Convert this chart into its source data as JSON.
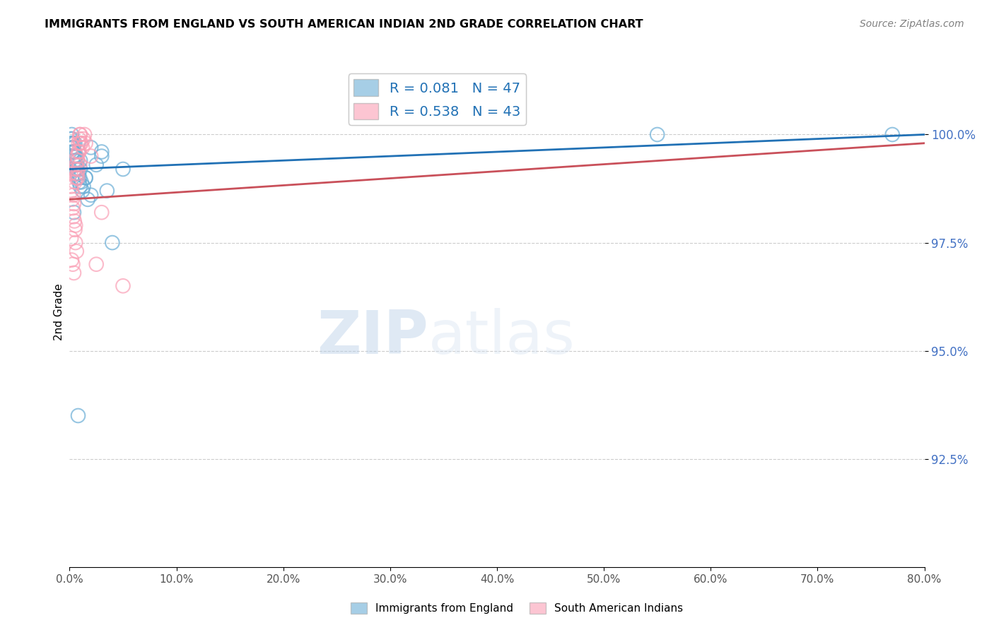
{
  "title": "IMMIGRANTS FROM ENGLAND VS SOUTH AMERICAN INDIAN 2ND GRADE CORRELATION CHART",
  "source": "Source: ZipAtlas.com",
  "ylabel": "2nd Grade",
  "legend_label1": "Immigrants from England",
  "legend_label2": "South American Indians",
  "R1": 0.081,
  "N1": 47,
  "R2": 0.538,
  "N2": 43,
  "color1": "#6baed6",
  "color2": "#fa9fb5",
  "trendline1_color": "#2171b5",
  "trendline2_color": "#c9505a",
  "xlim": [
    0.0,
    80.0
  ],
  "ylim": [
    90.0,
    101.8
  ],
  "yticks": [
    92.5,
    95.0,
    97.5,
    100.0
  ],
  "xticks": [
    0.0,
    10.0,
    20.0,
    30.0,
    40.0,
    50.0,
    60.0,
    70.0,
    80.0
  ],
  "scatter1_x": [
    0.1,
    0.15,
    0.2,
    0.2,
    0.25,
    0.3,
    0.3,
    0.35,
    0.4,
    0.4,
    0.45,
    0.5,
    0.5,
    0.55,
    0.6,
    0.6,
    0.65,
    0.7,
    0.7,
    0.75,
    0.8,
    0.85,
    0.9,
    0.95,
    1.0,
    1.0,
    1.1,
    1.2,
    1.3,
    1.5,
    1.7,
    2.0,
    2.5,
    3.0,
    3.5,
    4.0,
    5.0,
    0.3,
    0.5,
    1.0,
    1.5,
    2.0,
    3.0,
    55.0,
    77.0,
    0.4,
    0.8
  ],
  "scatter1_y": [
    99.9,
    99.8,
    99.7,
    100.0,
    99.9,
    99.8,
    99.6,
    99.7,
    99.8,
    99.5,
    99.6,
    99.5,
    99.4,
    99.3,
    99.5,
    99.2,
    99.3,
    99.4,
    99.1,
    99.2,
    99.0,
    99.1,
    98.9,
    99.0,
    99.2,
    98.8,
    98.9,
    98.7,
    98.8,
    99.0,
    98.5,
    98.6,
    99.3,
    99.5,
    98.7,
    97.5,
    99.2,
    99.6,
    99.8,
    99.4,
    99.0,
    99.7,
    99.6,
    100.0,
    100.0,
    98.2,
    93.5
  ],
  "scatter2_x": [
    0.1,
    0.15,
    0.2,
    0.25,
    0.3,
    0.35,
    0.4,
    0.45,
    0.5,
    0.5,
    0.55,
    0.6,
    0.65,
    0.7,
    0.75,
    0.8,
    0.85,
    0.9,
    0.95,
    1.0,
    1.1,
    1.2,
    1.3,
    1.4,
    1.5,
    0.2,
    0.3,
    0.4,
    0.5,
    0.6,
    0.7,
    0.8,
    0.9,
    1.0,
    2.0,
    3.0,
    0.15,
    0.35,
    0.55,
    0.75,
    0.95,
    2.5,
    5.0
  ],
  "scatter2_y": [
    99.1,
    98.8,
    98.7,
    98.5,
    98.3,
    98.1,
    98.4,
    98.0,
    99.2,
    97.8,
    97.5,
    99.0,
    97.3,
    99.1,
    99.4,
    99.6,
    99.8,
    99.9,
    100.0,
    100.0,
    99.8,
    99.7,
    99.9,
    100.0,
    99.8,
    97.1,
    97.0,
    96.8,
    98.9,
    99.3,
    99.5,
    99.2,
    99.6,
    99.8,
    99.5,
    98.2,
    97.6,
    98.6,
    97.9,
    99.0,
    99.3,
    97.0,
    96.5
  ],
  "trendline1_x0": 0.0,
  "trendline1_y0": 99.2,
  "trendline1_x1": 80.0,
  "trendline1_y1": 100.0,
  "trendline2_x0": 0.0,
  "trendline2_y0": 98.5,
  "trendline2_x1": 80.0,
  "trendline2_y1": 99.8,
  "watermark_zip": "ZIP",
  "watermark_atlas": "atlas",
  "background_color": "#ffffff",
  "grid_color": "#cccccc",
  "ytick_color": "#4472c4",
  "xtick_color": "#555555"
}
